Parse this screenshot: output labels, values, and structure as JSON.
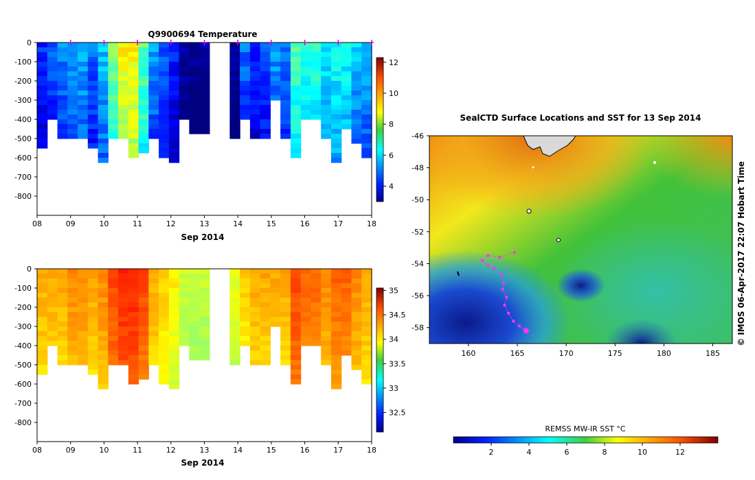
{
  "chart_data": [
    {
      "type": "heatmap",
      "title": "Q9900694  Temperature",
      "xlabel": "Sep 2014",
      "ylabel": "",
      "xticks": [
        "08",
        "09",
        "10",
        "11",
        "12",
        "13",
        "14",
        "15",
        "16",
        "17",
        "18"
      ],
      "yticks": [
        "0",
        "-100",
        "-200",
        "-300",
        "-400",
        "-500",
        "-600",
        "-700",
        "-800"
      ],
      "ylim": [
        -900,
        0
      ],
      "colorbar": {
        "ticks": [
          "4",
          "6",
          "8",
          "10",
          "12"
        ],
        "range": [
          3,
          12.3
        ],
        "colormap": "jet"
      },
      "profile_markers_day": [
        9.0,
        10.0,
        11.0,
        12.0,
        13.0,
        14.0,
        15.0,
        16.0,
        17.0,
        18.0
      ],
      "profiles": [
        {
          "day": 8.0,
          "depth": 560,
          "value": 4.6
        },
        {
          "day": 8.3,
          "depth": 400,
          "value": 5.0
        },
        {
          "day": 8.6,
          "depth": 500,
          "value": 5.4
        },
        {
          "day": 8.9,
          "depth": 500,
          "value": 5.6
        },
        {
          "day": 9.2,
          "depth": 500,
          "value": 5.8
        },
        {
          "day": 9.5,
          "depth": 560,
          "value": 5.2
        },
        {
          "day": 9.8,
          "depth": 635,
          "value": 6.0
        },
        {
          "day": 10.1,
          "depth": 500,
          "value": 7.6
        },
        {
          "day": 10.4,
          "depth": 500,
          "value": 8.8
        },
        {
          "day": 10.7,
          "depth": 610,
          "value": 9.0
        },
        {
          "day": 11.0,
          "depth": 585,
          "value": 7.4
        },
        {
          "day": 11.3,
          "depth": 490,
          "value": 5.6
        },
        {
          "day": 11.6,
          "depth": 590,
          "value": 5.0
        },
        {
          "day": 11.9,
          "depth": 620,
          "value": 4.4
        },
        {
          "day": 12.2,
          "depth": 400,
          "value": 3.4
        },
        {
          "day": 12.5,
          "depth": 465,
          "value": 3.2
        },
        {
          "day": 12.8,
          "depth": 465,
          "value": 3.2
        },
        {
          "day": 13.1,
          "depth": 0,
          "value": null
        },
        {
          "day": 13.4,
          "depth": 0,
          "value": null
        },
        {
          "day": 13.8,
          "depth": 500,
          "value": 3.3
        },
        {
          "day": 14.1,
          "depth": 400,
          "value": 5.2
        },
        {
          "day": 14.4,
          "depth": 500,
          "value": 4.6
        },
        {
          "day": 14.7,
          "depth": 500,
          "value": 5.0
        },
        {
          "day": 15.0,
          "depth": 300,
          "value": 5.6
        },
        {
          "day": 15.3,
          "depth": 500,
          "value": 5.2
        },
        {
          "day": 15.6,
          "depth": 595,
          "value": 7.2
        },
        {
          "day": 15.9,
          "depth": 400,
          "value": 6.8
        },
        {
          "day": 16.2,
          "depth": 410,
          "value": 7.0
        },
        {
          "day": 16.5,
          "depth": 505,
          "value": 6.4
        },
        {
          "day": 16.8,
          "depth": 635,
          "value": 6.6
        },
        {
          "day": 17.1,
          "depth": 460,
          "value": 6.6
        },
        {
          "day": 17.4,
          "depth": 530,
          "value": 6.0
        },
        {
          "day": 17.7,
          "depth": 605,
          "value": 5.8
        }
      ]
    },
    {
      "type": "heatmap",
      "title": "",
      "xlabel": "Sep 2014",
      "ylabel": "",
      "xticks": [
        "08",
        "09",
        "10",
        "11",
        "12",
        "13",
        "14",
        "15",
        "16",
        "17",
        "18"
      ],
      "yticks": [
        "0",
        "-100",
        "-200",
        "-300",
        "-400",
        "-500",
        "-600",
        "-700",
        "-800"
      ],
      "ylim": [
        -900,
        0
      ],
      "colorbar": {
        "ticks": [
          "32.5",
          "33",
          "33.5",
          "34",
          "34.5",
          "35"
        ],
        "range": [
          32.1,
          35.05
        ],
        "colormap": "jet"
      },
      "profiles": [
        {
          "day": 8.0,
          "depth": 560,
          "value": 34.2
        },
        {
          "day": 8.3,
          "depth": 400,
          "value": 34.2
        },
        {
          "day": 8.6,
          "depth": 500,
          "value": 34.2
        },
        {
          "day": 8.9,
          "depth": 500,
          "value": 34.3
        },
        {
          "day": 9.2,
          "depth": 500,
          "value": 34.3
        },
        {
          "day": 9.5,
          "depth": 560,
          "value": 34.2
        },
        {
          "day": 9.8,
          "depth": 635,
          "value": 34.3
        },
        {
          "day": 10.1,
          "depth": 500,
          "value": 34.5
        },
        {
          "day": 10.4,
          "depth": 500,
          "value": 34.6
        },
        {
          "day": 10.7,
          "depth": 610,
          "value": 34.6
        },
        {
          "day": 11.0,
          "depth": 585,
          "value": 34.5
        },
        {
          "day": 11.3,
          "depth": 490,
          "value": 34.2
        },
        {
          "day": 11.6,
          "depth": 590,
          "value": 34.1
        },
        {
          "day": 11.9,
          "depth": 620,
          "value": 34.0
        },
        {
          "day": 12.2,
          "depth": 400,
          "value": 33.8
        },
        {
          "day": 12.5,
          "depth": 465,
          "value": 33.8
        },
        {
          "day": 12.8,
          "depth": 465,
          "value": 33.8
        },
        {
          "day": 13.1,
          "depth": 0,
          "value": null
        },
        {
          "day": 13.4,
          "depth": 0,
          "value": null
        },
        {
          "day": 13.8,
          "depth": 500,
          "value": 33.9
        },
        {
          "day": 14.1,
          "depth": 400,
          "value": 34.1
        },
        {
          "day": 14.4,
          "depth": 500,
          "value": 34.2
        },
        {
          "day": 14.7,
          "depth": 500,
          "value": 34.2
        },
        {
          "day": 15.0,
          "depth": 300,
          "value": 34.2
        },
        {
          "day": 15.3,
          "depth": 500,
          "value": 34.2
        },
        {
          "day": 15.6,
          "depth": 595,
          "value": 34.5
        },
        {
          "day": 15.9,
          "depth": 400,
          "value": 34.4
        },
        {
          "day": 16.2,
          "depth": 410,
          "value": 34.4
        },
        {
          "day": 16.5,
          "depth": 505,
          "value": 34.3
        },
        {
          "day": 16.8,
          "depth": 635,
          "value": 34.4
        },
        {
          "day": 17.1,
          "depth": 460,
          "value": 34.4
        },
        {
          "day": 17.4,
          "depth": 530,
          "value": 34.3
        },
        {
          "day": 17.7,
          "depth": 605,
          "value": 34.2
        }
      ]
    },
    {
      "type": "heatmap",
      "title": "SealCTD Surface Locations and SST for 13 Sep 2014",
      "xlabel": "",
      "ylabel": "",
      "xticks": [
        "160",
        "165",
        "170",
        "175",
        "180",
        "185"
      ],
      "yticks": [
        "-46",
        "-48",
        "-50",
        "-52",
        "-54",
        "-56",
        "-58"
      ],
      "xlim": [
        156,
        187
      ],
      "ylim": [
        -59,
        -46
      ],
      "side_text": "© IMOS 06-Apr-2017 22:07 Hobart Time",
      "colorbar": {
        "label": "REMSS MW-IR SST °C",
        "ticks": [
          "2",
          "4",
          "6",
          "8",
          "10",
          "12"
        ],
        "range": [
          0,
          14
        ],
        "colormap": "jet"
      },
      "track": [
        {
          "lon": 164.7,
          "lat": -53.3
        },
        {
          "lon": 163.2,
          "lat": -53.6
        },
        {
          "lon": 162.0,
          "lat": -53.5
        },
        {
          "lon": 161.4,
          "lat": -53.8
        },
        {
          "lon": 162.0,
          "lat": -54.1
        },
        {
          "lon": 162.6,
          "lat": -54.3
        },
        {
          "lon": 163.4,
          "lat": -54.7
        },
        {
          "lon": 163.6,
          "lat": -55.2
        },
        {
          "lon": 163.5,
          "lat": -55.6
        },
        {
          "lon": 163.9,
          "lat": -56.1
        },
        {
          "lon": 163.7,
          "lat": -56.6
        },
        {
          "lon": 164.1,
          "lat": -57.1
        },
        {
          "lon": 164.6,
          "lat": -57.6
        },
        {
          "lon": 165.2,
          "lat": -57.9
        },
        {
          "lon": 165.9,
          "lat": -58.2
        }
      ],
      "track_end": {
        "lon": 165.9,
        "lat": -58.2
      }
    }
  ]
}
